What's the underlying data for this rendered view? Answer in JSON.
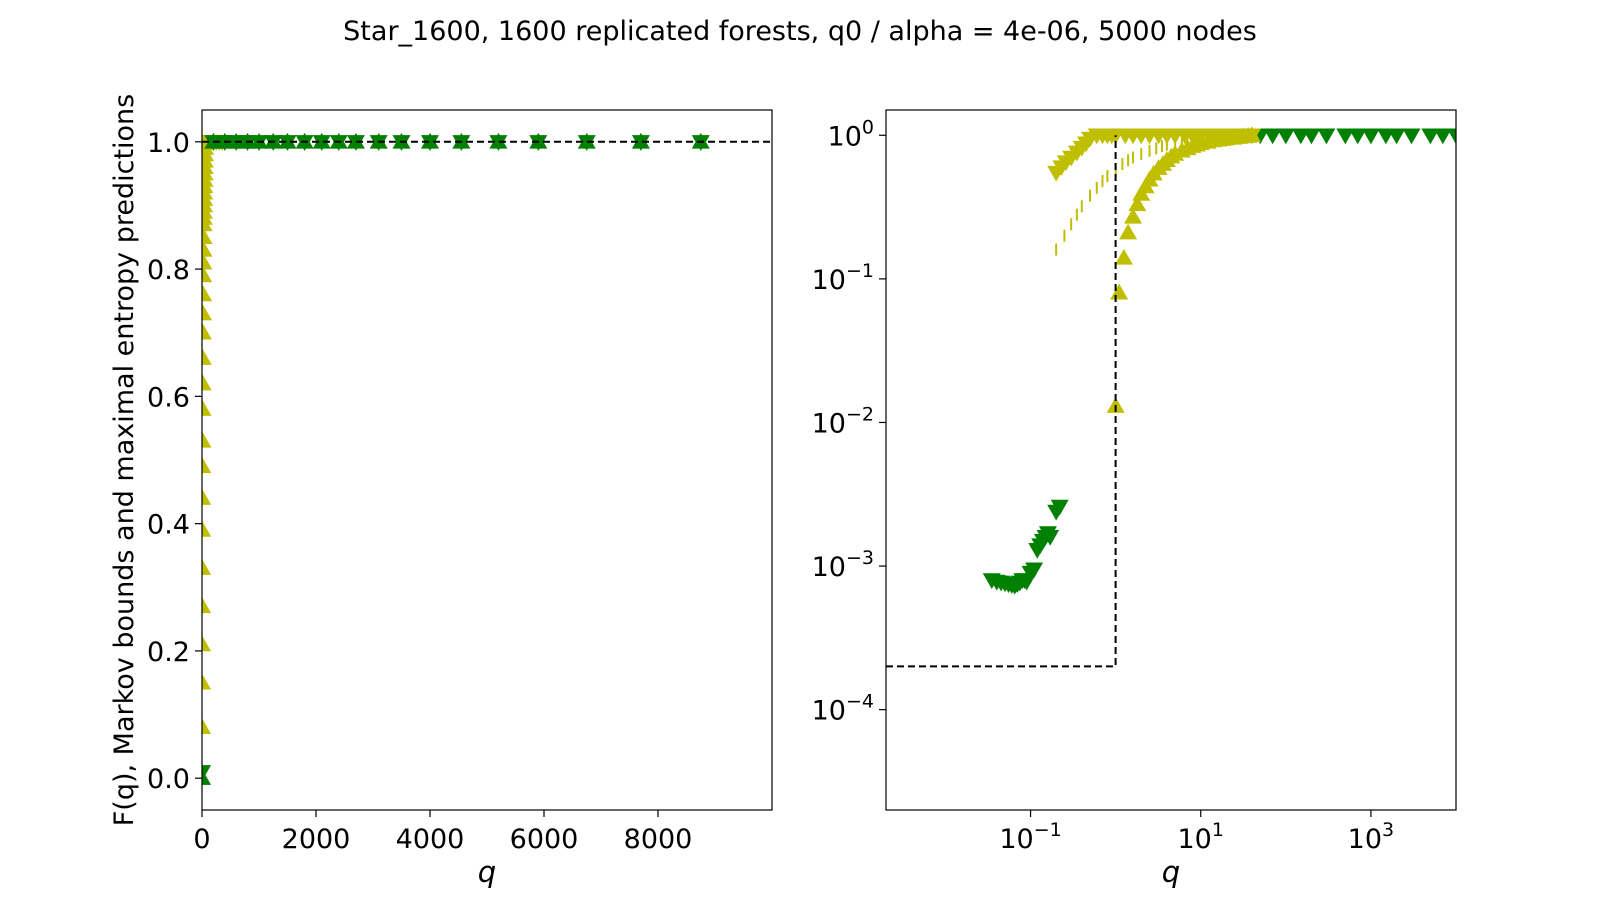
{
  "figure": {
    "title": "Star_1600, 1600 replicated forests, q0 / alpha = 4e-06, 5000 nodes"
  },
  "colors": {
    "markov_bound": "#bfbf00",
    "max_entropy": "#008000",
    "reference": "#000000"
  },
  "chart_data": [
    {
      "type": "scatter",
      "panel": "left",
      "xscale": "linear",
      "yscale": "linear",
      "xlabel": "q",
      "ylabel": "F(q), Markov bounds and maximal entropy predictions",
      "xlim": [
        0,
        10000
      ],
      "ylim": [
        -0.05,
        1.05
      ],
      "xticks": [
        0,
        2000,
        4000,
        6000,
        8000
      ],
      "xtick_labels": [
        "0",
        "2000",
        "4000",
        "6000",
        "8000"
      ],
      "yticks": [
        0.0,
        0.2,
        0.4,
        0.6,
        0.8,
        1.0
      ],
      "ytick_labels": [
        "0.0",
        "0.2",
        "0.4",
        "0.6",
        "0.8",
        "1.0"
      ],
      "grid": false,
      "legend": "none",
      "series": [
        {
          "role": "markov-lower",
          "marker": "triangle-up",
          "color": "#bfbf00",
          "x": [
            2,
            2,
            2,
            3,
            3,
            4,
            5,
            6,
            8,
            10,
            12,
            14,
            16,
            18,
            20,
            22,
            24,
            26,
            28,
            30,
            32,
            34,
            36,
            38,
            40,
            42,
            44,
            46,
            48,
            50,
            53,
            55
          ],
          "y": [
            0.08,
            0.15,
            0.21,
            0.27,
            0.33,
            0.39,
            0.44,
            0.49,
            0.53,
            0.58,
            0.62,
            0.66,
            0.7,
            0.73,
            0.76,
            0.79,
            0.81,
            0.83,
            0.85,
            0.87,
            0.88,
            0.89,
            0.9,
            0.91,
            0.92,
            0.93,
            0.94,
            0.95,
            0.96,
            0.97,
            0.98,
            0.99
          ]
        },
        {
          "role": "markov-upper",
          "marker": "triangle-down",
          "color": "#bfbf00",
          "x": [
            80,
            120,
            160,
            200,
            250,
            300,
            350
          ],
          "y": [
            1.0,
            1.0,
            1.0,
            1.0,
            1.0,
            1.0,
            1.0
          ]
        },
        {
          "role": "max-entropy-up",
          "marker": "triangle-up",
          "color": "#008000",
          "x": [
            1,
            200,
            400,
            600,
            800,
            1000,
            1250,
            1500,
            1800,
            2100,
            2400,
            2700,
            3100,
            3500,
            4000,
            4550,
            5200,
            5900,
            6750,
            7700,
            8750
          ],
          "y": [
            0.0,
            1.0,
            1.0,
            1.0,
            1.0,
            1.0,
            1.0,
            1.0,
            1.0,
            1.0,
            1.0,
            1.0,
            1.0,
            1.0,
            1.0,
            1.0,
            1.0,
            1.0,
            1.0,
            1.0,
            1.0
          ]
        },
        {
          "role": "max-entropy-down",
          "marker": "triangle-down",
          "color": "#008000",
          "x": [
            1,
            200,
            400,
            600,
            800,
            1000,
            1250,
            1500,
            1800,
            2100,
            2400,
            2700,
            3100,
            3500,
            4000,
            4550,
            5200,
            5900,
            6750,
            7700,
            8750
          ],
          "y": [
            0.01,
            1.0,
            1.0,
            1.0,
            1.0,
            1.0,
            1.0,
            1.0,
            1.0,
            1.0,
            1.0,
            1.0,
            1.0,
            1.0,
            1.0,
            1.0,
            1.0,
            1.0,
            1.0,
            1.0,
            1.0
          ]
        },
        {
          "role": "reference",
          "marker": "dashed-line",
          "color": "#000000",
          "x": [
            0,
            10000
          ],
          "y": [
            1.0,
            1.0
          ]
        }
      ]
    },
    {
      "type": "scatter",
      "panel": "right",
      "xscale": "log",
      "yscale": "log",
      "xlabel": "q",
      "ylabel": "",
      "xlim": [
        0.002,
        10000
      ],
      "ylim": [
        2e-05,
        1.5
      ],
      "xticks": [
        0.1,
        10,
        1000
      ],
      "xtick_labels": [
        {
          "base": "10",
          "exp": "−1"
        },
        {
          "base": "10",
          "exp": "1"
        },
        {
          "base": "10",
          "exp": "3"
        }
      ],
      "yticks": [
        0.0001,
        0.001,
        0.01,
        0.1,
        1
      ],
      "ytick_labels": [
        {
          "base": "10",
          "exp": "−4"
        },
        {
          "base": "10",
          "exp": "−3"
        },
        {
          "base": "10",
          "exp": "−2"
        },
        {
          "base": "10",
          "exp": "−1"
        },
        {
          "base": "10",
          "exp": "0"
        }
      ],
      "grid": false,
      "legend": "none",
      "series": [
        {
          "role": "max-entropy",
          "marker": "triangle-down",
          "color": "#008000",
          "x": [
            0.035,
            0.04,
            0.045,
            0.05,
            0.055,
            0.06,
            0.065,
            0.07,
            0.075,
            0.08,
            0.085,
            0.09,
            0.1,
            0.11,
            0.12,
            0.13,
            0.14,
            0.15,
            0.16,
            0.17,
            0.2,
            0.22
          ],
          "y": [
            0.0008,
            0.00078,
            0.00077,
            0.00076,
            0.00075,
            0.00074,
            0.00073,
            0.00075,
            0.00077,
            0.0008,
            0.0008,
            0.00078,
            0.0009,
            0.00095,
            0.0013,
            0.0014,
            0.0015,
            0.0016,
            0.0017,
            0.0016,
            0.0024,
            0.0026
          ]
        },
        {
          "role": "max-entropy-high",
          "marker": "triangle-down",
          "color": "#008000",
          "x": [
            50,
            70,
            100,
            150,
            200,
            300,
            500,
            700,
            1000,
            1500,
            2000,
            3000,
            5000,
            7000,
            10000
          ],
          "y": [
            1.0,
            1.0,
            1.0,
            1.0,
            1.0,
            1.0,
            1.0,
            1.0,
            1.0,
            1.0,
            1.0,
            1.0,
            1.0,
            1.0,
            1.0
          ]
        },
        {
          "role": "markov-upper",
          "marker": "triangle-down",
          "color": "#bfbf00",
          "x": [
            0.2,
            0.23,
            0.26,
            0.3,
            0.35,
            0.4,
            0.45,
            0.5,
            0.6,
            0.7,
            0.8,
            0.9,
            1.0,
            1.3,
            1.6,
            2.0,
            2.5,
            3.2,
            4,
            5,
            6.5,
            8,
            10,
            13,
            16,
            20,
            25,
            32,
            40
          ],
          "y": [
            0.55,
            0.6,
            0.65,
            0.7,
            0.76,
            0.82,
            0.88,
            0.95,
            1.0,
            1.0,
            1.0,
            1.0,
            1.0,
            1.0,
            1.0,
            1.0,
            1.0,
            1.0,
            1.0,
            1.0,
            1.0,
            1.0,
            1.0,
            1.0,
            1.0,
            1.0,
            1.0,
            1.0,
            1.0
          ]
        },
        {
          "role": "markov-lower",
          "marker": "triangle-up",
          "color": "#bfbf00",
          "x": [
            1.0,
            1.1,
            1.25,
            1.4,
            1.6,
            1.8,
            2.0,
            2.25,
            2.5,
            2.8,
            3.2,
            3.6,
            4.0,
            4.5,
            5,
            6,
            7,
            8,
            9,
            10,
            12,
            14,
            16,
            18,
            20,
            24,
            28,
            32,
            36,
            40
          ],
          "y": [
            0.013,
            0.08,
            0.14,
            0.21,
            0.27,
            0.33,
            0.39,
            0.44,
            0.49,
            0.54,
            0.59,
            0.63,
            0.67,
            0.71,
            0.74,
            0.78,
            0.81,
            0.84,
            0.86,
            0.88,
            0.9,
            0.92,
            0.93,
            0.94,
            0.95,
            0.96,
            0.97,
            0.98,
            0.99,
            1.0
          ]
        },
        {
          "role": "markov-ticks",
          "marker": "vertical-tick",
          "color": "#bfbf00",
          "x": [
            0.2,
            0.25,
            0.3,
            0.35,
            0.4,
            0.5,
            0.6,
            0.7,
            0.8,
            1.0,
            1.2,
            1.4,
            1.6,
            2.0,
            2.5,
            3.0,
            3.5,
            4,
            5,
            6,
            7,
            8,
            10,
            12,
            14,
            16,
            18,
            20,
            25,
            30,
            35,
            40
          ],
          "y": [
            0.16,
            0.2,
            0.24,
            0.28,
            0.32,
            0.38,
            0.43,
            0.48,
            0.52,
            0.58,
            0.63,
            0.67,
            0.7,
            0.74,
            0.78,
            0.81,
            0.84,
            0.86,
            0.89,
            0.91,
            0.92,
            0.93,
            0.95,
            0.96,
            0.97,
            0.97,
            0.98,
            0.98,
            0.99,
            0.99,
            1.0,
            1.0
          ]
        },
        {
          "role": "reference",
          "marker": "dashed-line",
          "color": "#000000",
          "x": [
            0.002,
            1.0,
            1.0,
            1.0
          ],
          "y": [
            0.0002,
            0.0002,
            0.01,
            1.0
          ]
        }
      ]
    }
  ]
}
